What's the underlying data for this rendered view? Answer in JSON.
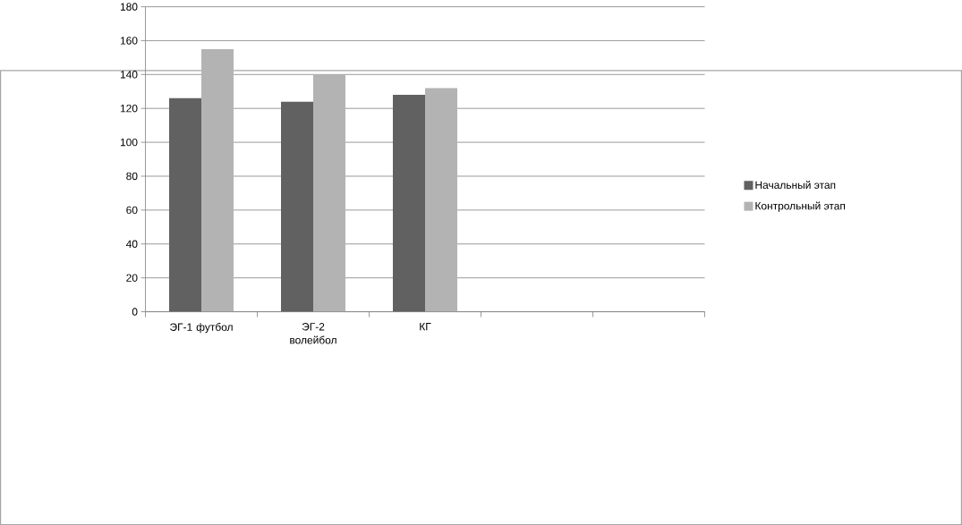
{
  "chart_data": {
    "type": "bar",
    "categories": [
      "ЭГ-1 футбол",
      "ЭГ-2 волейбол",
      "КГ",
      null,
      null
    ],
    "series": [
      {
        "name": "Начальный этап",
        "color": "#616161",
        "values": [
          126,
          124,
          128,
          null,
          null
        ]
      },
      {
        "name": "Контрольный этап",
        "color": "#b3b3b3",
        "values": [
          155,
          140,
          132,
          null,
          null
        ]
      }
    ],
    "ylim": [
      0,
      180
    ],
    "yticks": [
      0,
      20,
      40,
      60,
      80,
      100,
      120,
      140,
      160,
      180
    ],
    "grid": "y",
    "legend": "right"
  }
}
